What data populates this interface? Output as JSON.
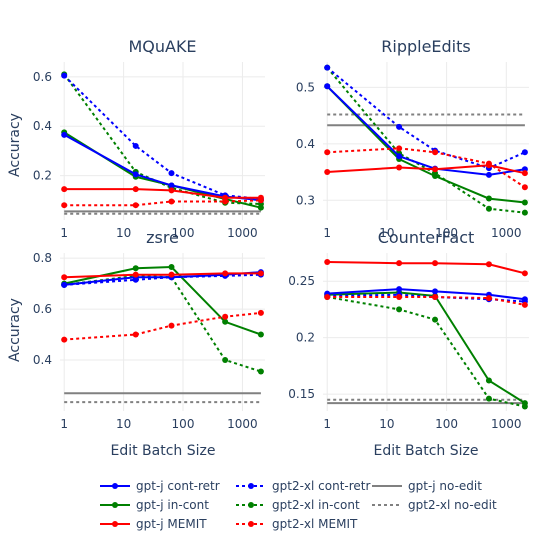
{
  "chart_data": {
    "type": "line",
    "x_label": "Edit Batch Size",
    "y_label": "Accuracy",
    "x_scale": "log",
    "x_ticks": [
      1,
      10,
      100,
      1000
    ],
    "x_tick_labels": [
      "1",
      "10",
      "100",
      "1000"
    ],
    "x_values": [
      1,
      16,
      64,
      512,
      2048
    ],
    "legend_position": "bottom",
    "series_styles": [
      {
        "name": "gpt-j cont-retr",
        "color": "#0000ff",
        "dash": "solid",
        "markers": true
      },
      {
        "name": "gpt-j in-cont",
        "color": "#008000",
        "dash": "solid",
        "markers": true
      },
      {
        "name": "gpt-j MEMIT",
        "color": "#ff0000",
        "dash": "solid",
        "markers": true
      },
      {
        "name": "gpt2-xl cont-retr",
        "color": "#0000ff",
        "dash": "dot",
        "markers": true
      },
      {
        "name": "gpt2-xl in-cont",
        "color": "#008000",
        "dash": "dot",
        "markers": true
      },
      {
        "name": "gpt2-xl MEMIT",
        "color": "#ff0000",
        "dash": "dot",
        "markers": true
      },
      {
        "name": "gpt-j no-edit",
        "color": "#808080",
        "dash": "solid",
        "markers": false
      },
      {
        "name": "gpt2-xl no-edit",
        "color": "#808080",
        "dash": "dot",
        "markers": false
      }
    ],
    "subplots": [
      {
        "title": "MQuAKE",
        "ylim": [
          0.02,
          0.66
        ],
        "y_ticks": [
          0.2,
          0.4,
          0.6
        ],
        "y_tick_labels": [
          "0.2",
          "0.4",
          "0.6"
        ],
        "series": [
          {
            "name": "gpt-j cont-retr",
            "values": [
              0.365,
              0.205,
              0.16,
              0.115,
              0.1
            ]
          },
          {
            "name": "gpt-j in-cont",
            "values": [
              0.375,
              0.195,
              0.16,
              0.105,
              0.07
            ]
          },
          {
            "name": "gpt-j MEMIT",
            "values": [
              0.145,
              0.145,
              0.14,
              0.11,
              0.11
            ]
          },
          {
            "name": "gpt2-xl cont-retr",
            "values": [
              0.605,
              0.32,
              0.21,
              0.12,
              0.105
            ]
          },
          {
            "name": "gpt2-xl in-cont",
            "values": [
              0.61,
              0.215,
              0.15,
              0.09,
              0.085
            ]
          },
          {
            "name": "gpt2-xl MEMIT",
            "values": [
              0.08,
              0.08,
              0.095,
              0.095,
              0.1
            ]
          },
          {
            "name": "gpt-j no-edit",
            "values": [
              0.055,
              0.055,
              0.055,
              0.055,
              0.055
            ]
          },
          {
            "name": "gpt2-xl no-edit",
            "values": [
              0.045,
              0.045,
              0.045,
              0.045,
              0.045
            ]
          }
        ]
      },
      {
        "title": "RippleEdits",
        "ylim": [
          0.265,
          0.545
        ],
        "y_ticks": [
          0.3,
          0.4,
          0.5
        ],
        "y_tick_labels": [
          "0.3",
          "0.4",
          "0.5"
        ],
        "series": [
          {
            "name": "gpt-j cont-retr",
            "values": [
              0.502,
              0.378,
              0.356,
              0.345,
              0.355
            ]
          },
          {
            "name": "gpt-j in-cont",
            "values": [
              0.502,
              0.373,
              0.343,
              0.303,
              0.296
            ]
          },
          {
            "name": "gpt-j MEMIT",
            "values": [
              0.35,
              0.358,
              0.355,
              0.362,
              0.348
            ]
          },
          {
            "name": "gpt2-xl cont-retr",
            "values": [
              0.535,
              0.43,
              0.388,
              0.357,
              0.385
            ]
          },
          {
            "name": "gpt2-xl in-cont",
            "values": [
              0.535,
              0.383,
              0.348,
              0.285,
              0.278
            ]
          },
          {
            "name": "gpt2-xl MEMIT",
            "values": [
              0.385,
              0.392,
              0.385,
              0.365,
              0.323
            ]
          },
          {
            "name": "gpt-j no-edit",
            "values": [
              0.433,
              0.433,
              0.433,
              0.433,
              0.433
            ]
          },
          {
            "name": "gpt2-xl no-edit",
            "values": [
              0.452,
              0.452,
              0.452,
              0.452,
              0.452
            ]
          }
        ]
      },
      {
        "title": "zsre",
        "ylim": [
          0.2,
          0.82
        ],
        "y_ticks": [
          0.4,
          0.6,
          0.8
        ],
        "y_tick_labels": [
          "0.4",
          "0.6",
          "0.8"
        ],
        "series": [
          {
            "name": "gpt-j cont-retr",
            "values": [
              0.695,
              0.725,
              0.725,
              0.735,
              0.745
            ]
          },
          {
            "name": "gpt-j in-cont",
            "values": [
              0.7,
              0.76,
              0.765,
              0.55,
              0.5
            ]
          },
          {
            "name": "gpt-j MEMIT",
            "values": [
              0.725,
              0.735,
              0.735,
              0.74,
              0.74
            ]
          },
          {
            "name": "gpt2-xl cont-retr",
            "values": [
              0.695,
              0.715,
              0.725,
              0.73,
              0.735
            ]
          },
          {
            "name": "gpt2-xl in-cont",
            "values": [
              0.695,
              0.73,
              0.725,
              0.4,
              0.355
            ]
          },
          {
            "name": "gpt2-xl MEMIT",
            "values": [
              0.48,
              0.5,
              0.535,
              0.57,
              0.585
            ]
          },
          {
            "name": "gpt-j no-edit",
            "values": [
              0.27,
              0.27,
              0.27,
              0.27,
              0.27
            ]
          },
          {
            "name": "gpt2-xl no-edit",
            "values": [
              0.235,
              0.235,
              0.235,
              0.235,
              0.235
            ]
          }
        ]
      },
      {
        "title": "CounterFact",
        "ylim": [
          0.135,
          0.275
        ],
        "y_ticks": [
          0.15,
          0.2,
          0.25
        ],
        "y_tick_labels": [
          "0.15",
          "0.2",
          "0.25"
        ],
        "series": [
          {
            "name": "gpt-j cont-retr",
            "values": [
              0.239,
              0.243,
              0.241,
              0.238,
              0.234
            ]
          },
          {
            "name": "gpt-j in-cont",
            "values": [
              0.238,
              0.24,
              0.237,
              0.162,
              0.142
            ]
          },
          {
            "name": "gpt-j MEMIT",
            "values": [
              0.267,
              0.266,
              0.266,
              0.265,
              0.257
            ]
          },
          {
            "name": "gpt2-xl cont-retr",
            "values": [
              0.237,
              0.238,
              0.236,
              0.234,
              0.232
            ]
          },
          {
            "name": "gpt2-xl in-cont",
            "values": [
              0.236,
              0.225,
              0.216,
              0.146,
              0.139
            ]
          },
          {
            "name": "gpt2-xl MEMIT",
            "values": [
              0.236,
              0.236,
              0.236,
              0.235,
              0.229
            ]
          },
          {
            "name": "gpt-j no-edit",
            "values": [
              0.142,
              0.142,
              0.142,
              0.142,
              0.142
            ]
          },
          {
            "name": "gpt2-xl no-edit",
            "values": [
              0.145,
              0.145,
              0.145,
              0.145,
              0.145
            ]
          }
        ]
      }
    ]
  }
}
